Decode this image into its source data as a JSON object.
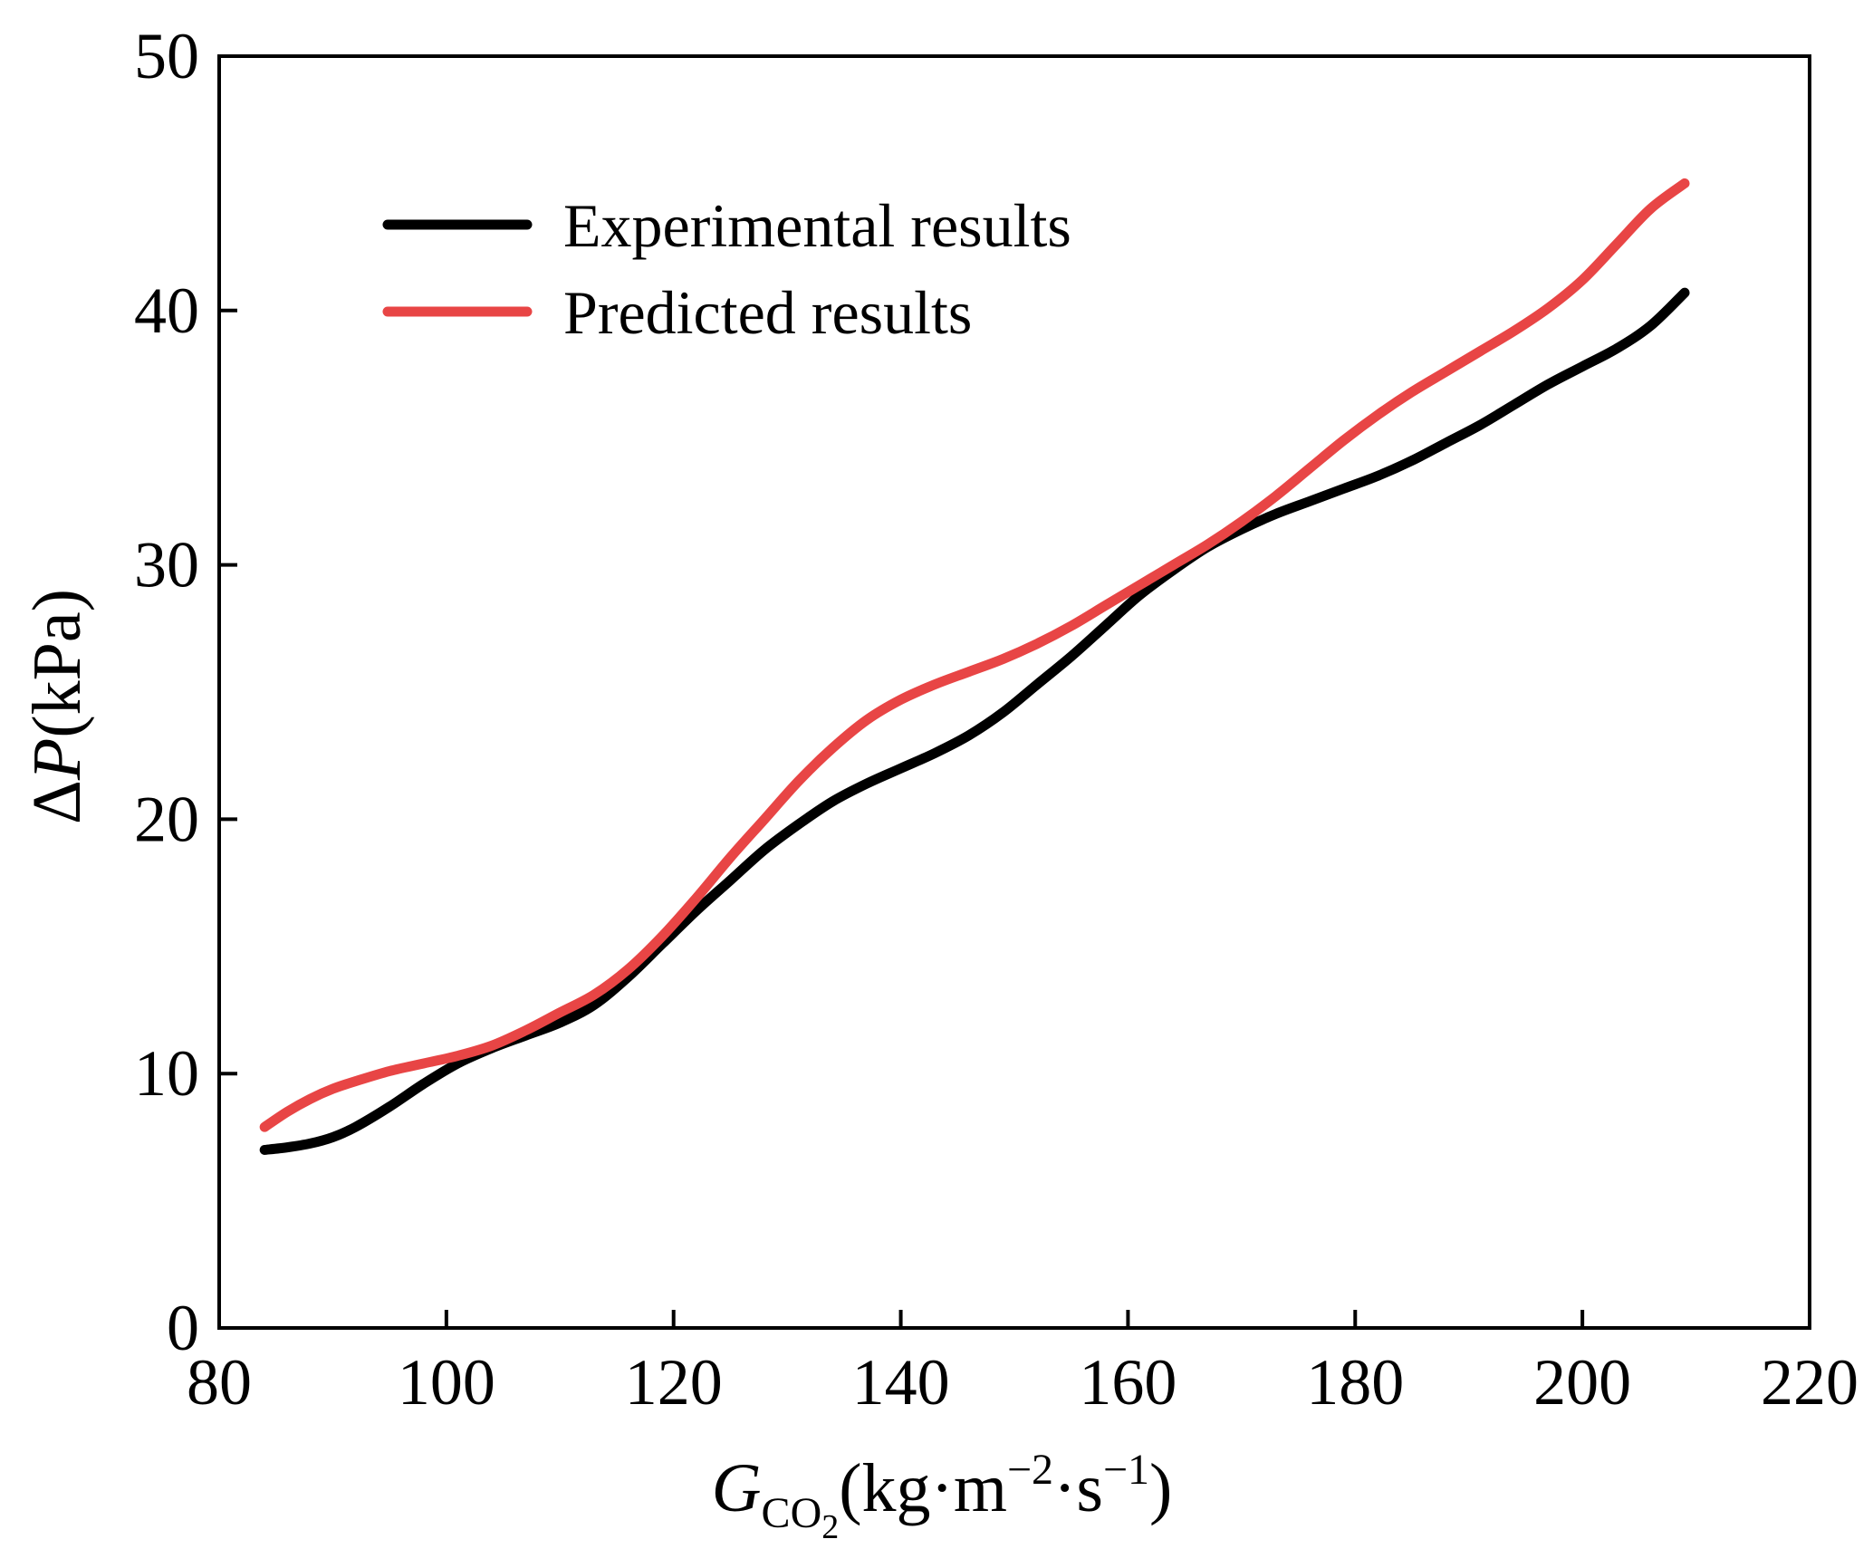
{
  "chart_data": {
    "type": "line",
    "title": "",
    "xlabel": {
      "symbol": "G",
      "subscript_main": "CO",
      "subscript_sub": "2",
      "units_prefix": "(kg·m",
      "units_exp1": "−2",
      "units_mid": "·s",
      "units_exp2": "−1",
      "units_suffix": ")"
    },
    "ylabel": {
      "delta": "Δ",
      "symbol": "P",
      "units": "(kPa)"
    },
    "xlim": [
      80,
      220
    ],
    "ylim": [
      0,
      50
    ],
    "xticks": [
      80,
      100,
      120,
      140,
      160,
      180,
      200,
      220
    ],
    "yticks": [
      0,
      10,
      20,
      30,
      40,
      50
    ],
    "xtick_labels": [
      "80",
      "100",
      "120",
      "140",
      "160",
      "180",
      "200",
      "220"
    ],
    "ytick_labels": [
      "0",
      "10",
      "20",
      "30",
      "40",
      "50"
    ],
    "grid": false,
    "legend_position": "top-left",
    "series": [
      {
        "name": "Experimental results",
        "color": "#000000",
        "x": [
          84,
          86,
          88,
          90,
          92,
          95,
          98,
          101,
          104,
          107,
          110,
          113,
          116,
          119,
          122,
          125,
          128,
          131,
          134,
          137,
          140,
          143,
          146,
          149,
          152,
          155,
          158,
          161,
          164,
          167,
          170,
          173,
          176,
          179,
          182,
          185,
          188,
          191,
          194,
          197,
          200,
          203,
          206,
          209
        ],
        "y": [
          7.0,
          7.1,
          7.25,
          7.5,
          7.9,
          8.7,
          9.6,
          10.4,
          11.0,
          11.5,
          12.0,
          12.7,
          13.8,
          15.1,
          16.4,
          17.6,
          18.8,
          19.8,
          20.7,
          21.4,
          22.0,
          22.6,
          23.3,
          24.2,
          25.3,
          26.4,
          27.6,
          28.8,
          29.8,
          30.7,
          31.4,
          32.0,
          32.5,
          33.0,
          33.5,
          34.1,
          34.8,
          35.5,
          36.3,
          37.1,
          37.8,
          38.5,
          39.4,
          40.7
        ]
      },
      {
        "name": "Predicted results",
        "color": "#e84545",
        "x": [
          84,
          86,
          88,
          90,
          92,
          95,
          98,
          101,
          104,
          107,
          110,
          113,
          116,
          119,
          122,
          125,
          128,
          131,
          134,
          137,
          140,
          143,
          146,
          149,
          152,
          155,
          158,
          161,
          164,
          167,
          170,
          173,
          176,
          179,
          182,
          185,
          188,
          191,
          194,
          197,
          200,
          203,
          206,
          209
        ],
        "y": [
          7.9,
          8.5,
          9.0,
          9.4,
          9.7,
          10.1,
          10.4,
          10.7,
          11.1,
          11.7,
          12.4,
          13.1,
          14.1,
          15.4,
          16.9,
          18.5,
          20.0,
          21.5,
          22.8,
          23.9,
          24.7,
          25.3,
          25.8,
          26.3,
          26.9,
          27.6,
          28.4,
          29.2,
          30.0,
          30.8,
          31.7,
          32.7,
          33.8,
          34.9,
          35.9,
          36.8,
          37.6,
          38.4,
          39.2,
          40.1,
          41.2,
          42.6,
          44.0,
          45.0
        ]
      }
    ]
  }
}
